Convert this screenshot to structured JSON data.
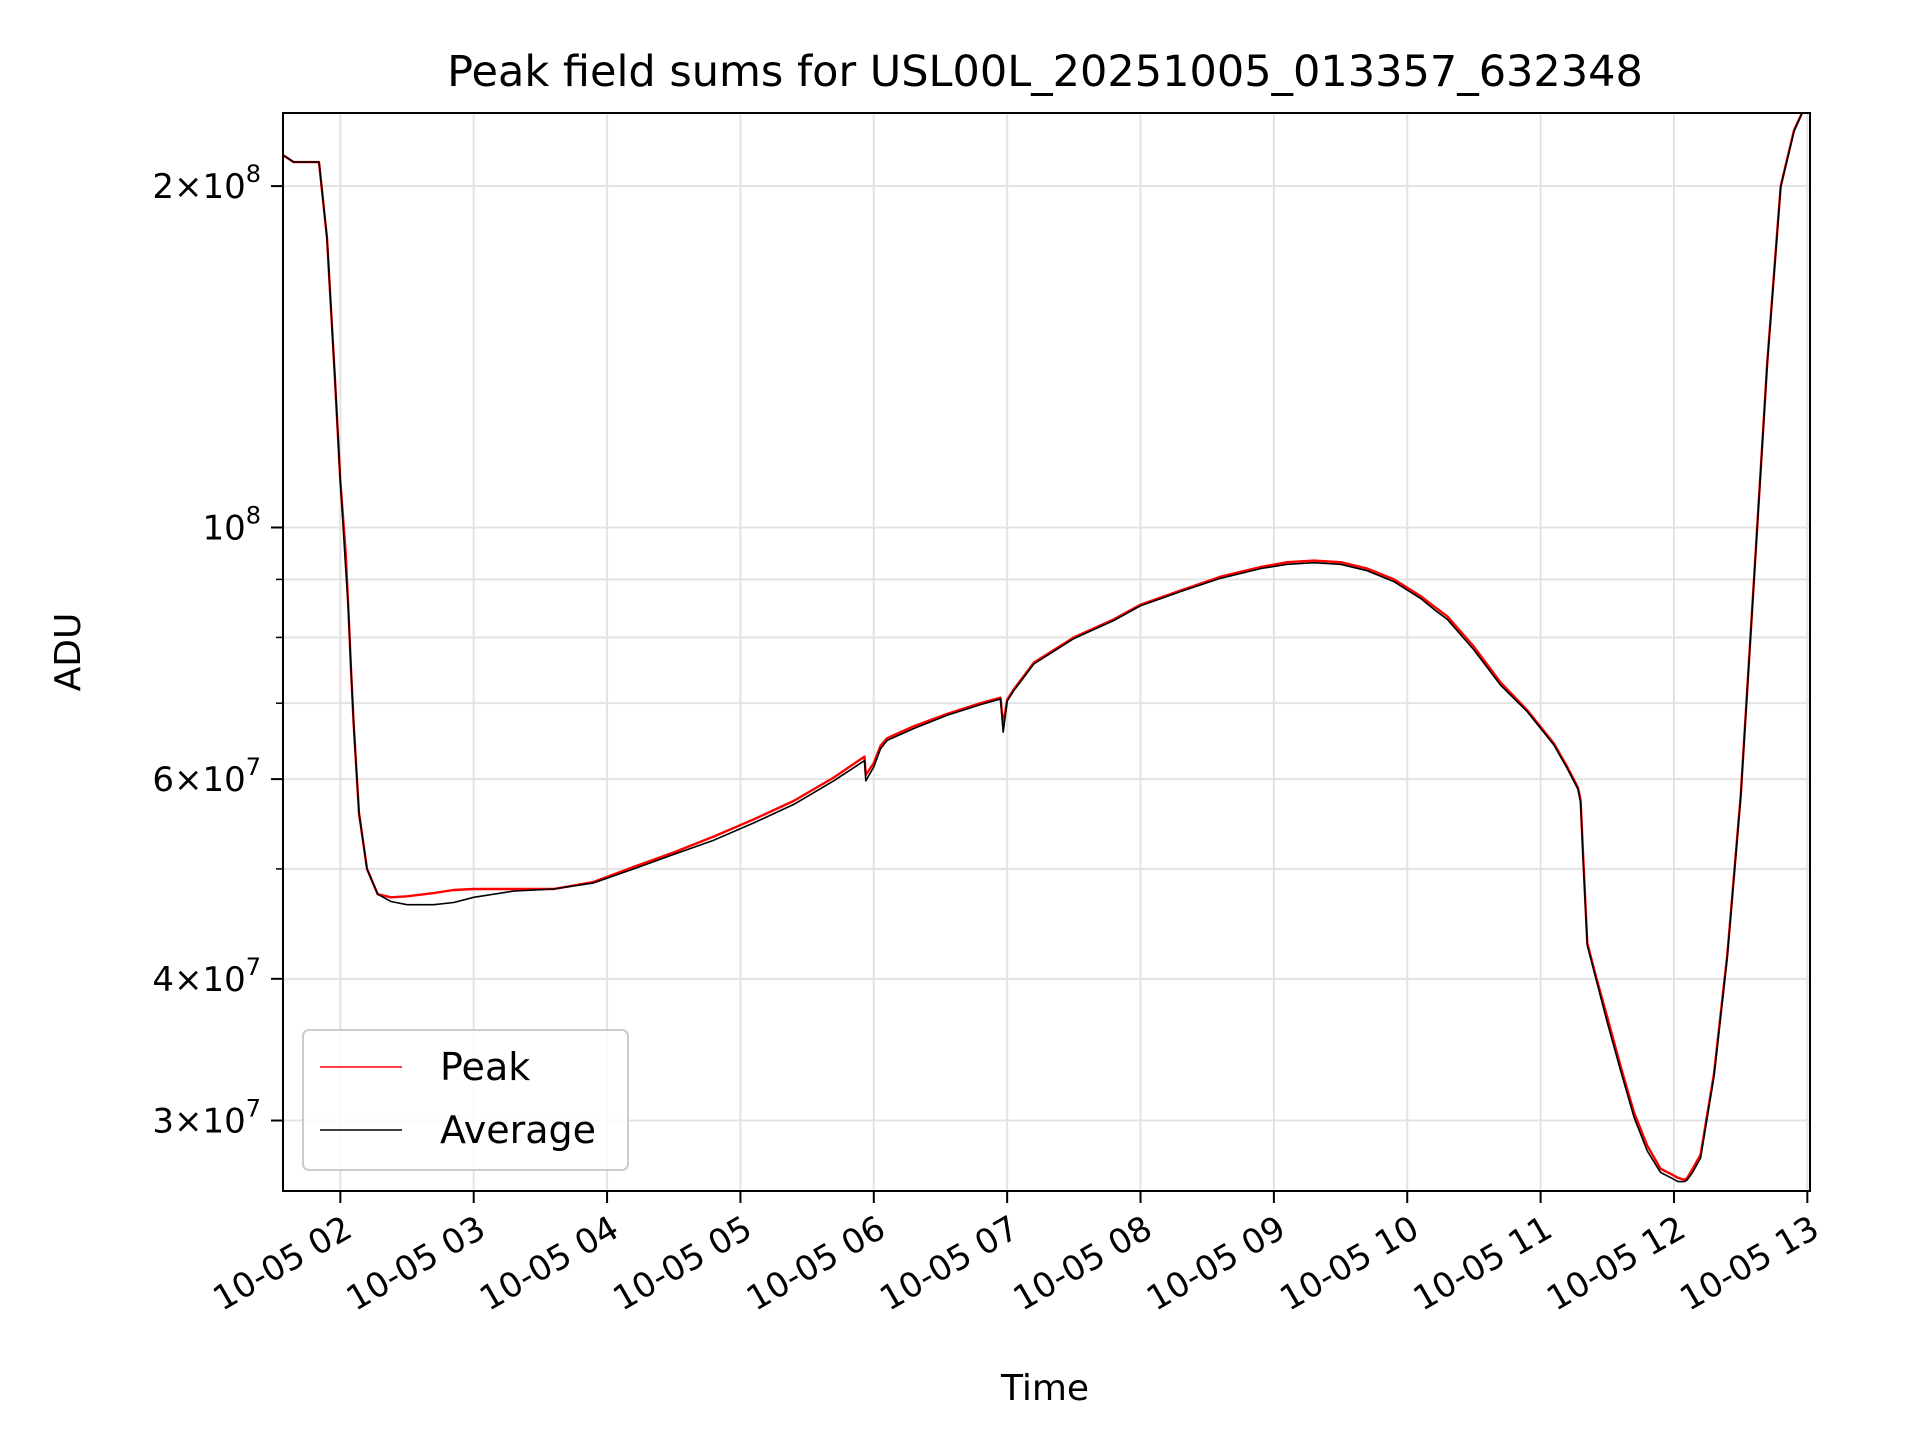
{
  "chart_data": {
    "type": "line",
    "title": "Peak field sums for USL00L_20251005_013357_632348",
    "xlabel": "Time",
    "ylabel": "ADU",
    "yscale": "log",
    "ylim": [
      26000000,
      232000000
    ],
    "xlim_hours": [
      1.57,
      13.02
    ],
    "grid": true,
    "legend_position": "lower-left",
    "x_ticks": [
      {
        "hour": 2,
        "label": "10-05 02"
      },
      {
        "hour": 3,
        "label": "10-05 03"
      },
      {
        "hour": 4,
        "label": "10-05 04"
      },
      {
        "hour": 5,
        "label": "10-05 05"
      },
      {
        "hour": 6,
        "label": "10-05 06"
      },
      {
        "hour": 7,
        "label": "10-05 07"
      },
      {
        "hour": 8,
        "label": "10-05 08"
      },
      {
        "hour": 9,
        "label": "10-05 09"
      },
      {
        "hour": 10,
        "label": "10-05 10"
      },
      {
        "hour": 11,
        "label": "10-05 11"
      },
      {
        "hour": 12,
        "label": "10-05 12"
      },
      {
        "hour": 13,
        "label": "10-05 13"
      }
    ],
    "y_ticks": [
      {
        "value": 200000000,
        "mant": "2×10",
        "exp": "8"
      },
      {
        "value": 100000000,
        "mant": "10",
        "exp": "8"
      },
      {
        "value": 60000000,
        "mant": "6×10",
        "exp": "7"
      },
      {
        "value": 40000000,
        "mant": "4×10",
        "exp": "7"
      },
      {
        "value": 30000000,
        "mant": "3×10",
        "exp": "7"
      }
    ],
    "y_minor_ticks": [
      50000000,
      70000000,
      80000000,
      90000000
    ],
    "series": [
      {
        "name": "Peak",
        "color": "#ff0000",
        "x_hours": [
          1.57,
          1.65,
          1.72,
          1.84,
          1.9,
          1.96,
          2.0,
          2.04,
          2.06,
          2.08,
          2.1,
          2.14,
          2.2,
          2.28,
          2.38,
          2.5,
          2.7,
          2.85,
          3.0,
          3.3,
          3.6,
          3.9,
          4.2,
          4.5,
          4.8,
          5.1,
          5.4,
          5.7,
          5.93,
          5.94,
          6.0,
          6.05,
          6.1,
          6.3,
          6.55,
          6.8,
          6.95,
          6.97,
          7.0,
          7.05,
          7.2,
          7.5,
          7.8,
          8.0,
          8.3,
          8.6,
          8.9,
          9.1,
          9.3,
          9.5,
          9.7,
          9.9,
          10.1,
          10.2,
          10.3,
          10.5,
          10.7,
          10.9,
          11.1,
          11.2,
          11.28,
          11.3,
          11.32,
          11.35,
          11.42,
          11.5,
          11.6,
          11.7,
          11.8,
          11.9,
          11.98,
          12.03,
          12.08,
          12.1,
          12.14,
          12.2,
          12.3,
          12.4,
          12.5,
          12.6,
          12.7,
          12.8,
          12.9,
          12.96,
          13.02
        ],
        "y": [
          213000000,
          210000000,
          210000000,
          210000000,
          180000000,
          135000000,
          110000000,
          95000000,
          85000000,
          75000000,
          67000000,
          56000000,
          50000000,
          47500000,
          47200000,
          47300000,
          47600000,
          47900000,
          48000000,
          48000000,
          48000000,
          48700000,
          50200000,
          51700000,
          53400000,
          55300000,
          57400000,
          60200000,
          62800000,
          60500000,
          62000000,
          64200000,
          65200000,
          66800000,
          68500000,
          70000000,
          70800000,
          67000000,
          70500000,
          72000000,
          76000000,
          80000000,
          83000000,
          85500000,
          88000000,
          90500000,
          92300000,
          93200000,
          93500000,
          93200000,
          92000000,
          90000000,
          87000000,
          85200000,
          83500000,
          78500000,
          73000000,
          69000000,
          64500000,
          61500000,
          59000000,
          57500000,
          51000000,
          43000000,
          40000000,
          37000000,
          33500000,
          30500000,
          28500000,
          27200000,
          26900000,
          26700000,
          26600000,
          26700000,
          27200000,
          28000000,
          33000000,
          42000000,
          58000000,
          90000000,
          140000000,
          200000000,
          224000000,
          232000000,
          240000000
        ]
      },
      {
        "name": "Average",
        "color": "#000000",
        "x_hours": [
          1.57,
          1.65,
          1.72,
          1.84,
          1.9,
          1.96,
          2.0,
          2.04,
          2.06,
          2.08,
          2.1,
          2.14,
          2.2,
          2.28,
          2.38,
          2.5,
          2.7,
          2.85,
          3.0,
          3.3,
          3.6,
          3.9,
          4.2,
          4.5,
          4.8,
          5.1,
          5.4,
          5.7,
          5.93,
          5.94,
          6.0,
          6.05,
          6.1,
          6.3,
          6.55,
          6.8,
          6.95,
          6.97,
          7.0,
          7.05,
          7.2,
          7.5,
          7.8,
          8.0,
          8.3,
          8.6,
          8.9,
          9.1,
          9.3,
          9.5,
          9.7,
          9.9,
          10.1,
          10.2,
          10.3,
          10.5,
          10.7,
          10.9,
          11.1,
          11.2,
          11.28,
          11.3,
          11.32,
          11.35,
          11.42,
          11.5,
          11.6,
          11.7,
          11.8,
          11.9,
          11.98,
          12.03,
          12.08,
          12.1,
          12.14,
          12.2,
          12.3,
          12.4,
          12.5,
          12.6,
          12.7,
          12.8,
          12.9,
          12.96,
          13.02
        ],
        "y": [
          213000000,
          210000000,
          210000000,
          210000000,
          180000000,
          135000000,
          110000000,
          92000000,
          85000000,
          75000000,
          67000000,
          56000000,
          50000000,
          47500000,
          46800000,
          46500000,
          46500000,
          46700000,
          47200000,
          47800000,
          48000000,
          48600000,
          50000000,
          51500000,
          53000000,
          54900000,
          57000000,
          59800000,
          62300000,
          59800000,
          61500000,
          63800000,
          64900000,
          66500000,
          68300000,
          69800000,
          70600000,
          66000000,
          70300000,
          71800000,
          75800000,
          79800000,
          82800000,
          85300000,
          87800000,
          90200000,
          92000000,
          92800000,
          93100000,
          92800000,
          91600000,
          89600000,
          86600000,
          84700000,
          83000000,
          78000000,
          72600000,
          68800000,
          64300000,
          61300000,
          58800000,
          57200000,
          50500000,
          42800000,
          39800000,
          36600000,
          33200000,
          30200000,
          28200000,
          27000000,
          26700000,
          26500000,
          26500000,
          26600000,
          27000000,
          27800000,
          32800000,
          41800000,
          57800000,
          89800000,
          139500000,
          199500000,
          223500000,
          231800000,
          240000000
        ]
      }
    ]
  }
}
